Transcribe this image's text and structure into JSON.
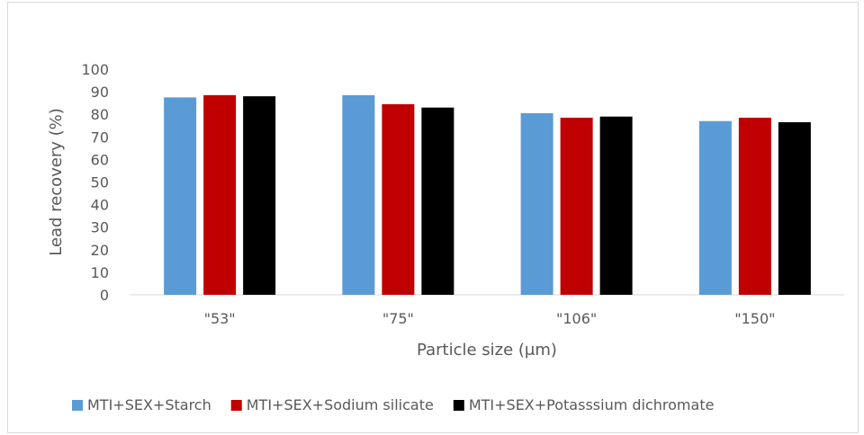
{
  "chart_data": {
    "type": "bar",
    "title": "",
    "xlabel": "Particle size (μm)",
    "ylabel": "Lead recovery (%)",
    "ylim": [
      0,
      100
    ],
    "yticks": [
      0,
      10,
      20,
      30,
      40,
      50,
      60,
      70,
      80,
      90,
      100
    ],
    "categories": [
      "\"53\"",
      "\"75\"",
      "\"106\"",
      "\"150\""
    ],
    "series": [
      {
        "name": "MTI+SEX+Starch",
        "color": "#5b9bd5",
        "values": [
          87.5,
          88.5,
          80.5,
          77.0
        ]
      },
      {
        "name": "MTI+SEX+Sodium silicate",
        "color": "#c00000",
        "values": [
          88.5,
          84.5,
          78.5,
          78.5
        ]
      },
      {
        "name": "MTI+SEX+Potasssium dichromate",
        "color": "#000000",
        "values": [
          88.0,
          83.0,
          79.0,
          76.5
        ]
      }
    ],
    "grid": false,
    "legend_position": "bottom"
  }
}
